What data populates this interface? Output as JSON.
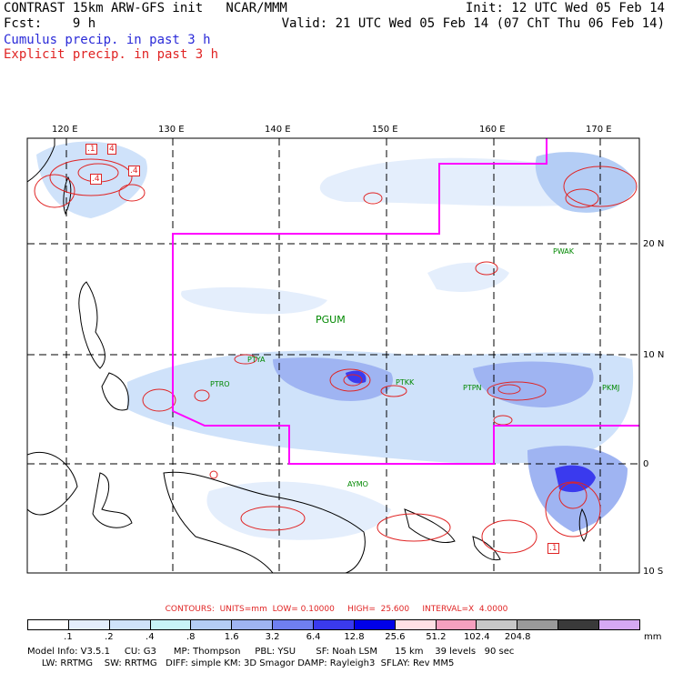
{
  "header": {
    "title": "CONTRAST 15km ARW-GFS init   NCAR/MMM",
    "init": "Init: 12 UTC Wed 05 Feb 14",
    "fcst": "Fcst:    9 h",
    "valid": "Valid: 21 UTC Wed 05 Feb 14 (07 ChT Thu 06 Feb 14)",
    "cumulus_label": "Cumulus precip. in past 3 h",
    "explicit_label": "Explicit precip. in past 3 h"
  },
  "map": {
    "lon_labels": [
      "120 E",
      "130 E",
      "140 E",
      "150 E",
      "160 E",
      "170 E"
    ],
    "lat_labels": [
      "20 N",
      "10 N",
      "0",
      "10 S"
    ],
    "stations": [
      "PWAK",
      "PGUM",
      "PTYA",
      "PTRO",
      "PTKK",
      "PTPN",
      "PKMJ",
      "AYMO"
    ],
    "contour_markers": [
      ".1",
      "4",
      ".4",
      ".4",
      ".1"
    ],
    "colors": {
      "domain_box": "#ff00ff",
      "explicit": "#e02424",
      "cumulus": "#2a2ad8",
      "station_text": "#008800"
    }
  },
  "contour_info": "CONTOURS:  UNITS=mm  LOW= 0.10000     HIGH=  25.600     INTERVAL=X  4.0000",
  "legend": {
    "colors": [
      "#ffffff",
      "#e4eefc",
      "#cfe2fa",
      "#c8f4f7",
      "#b4cdf5",
      "#9fb4f2",
      "#6f7ff0",
      "#3a3aee",
      "#0000e8",
      "#ffe0e4",
      "#f6a0bf",
      "#c8c8c8",
      "#9a9a9a",
      "#3a3a3a",
      "#d6a8f4"
    ],
    "ticks": [
      ".1",
      ".2",
      ".4",
      ".8",
      "1.6",
      "3.2",
      "6.4",
      "12.8",
      "25.6",
      "51.2",
      "102.4",
      "204.8"
    ],
    "unit": "mm"
  },
  "model_info": {
    "line1": "Model Info: V3.5.1     CU: G3      MP: Thompson     PBL: YSU       SF: Noah LSM      15 km    39 levels   90 sec",
    "line2": "     LW: RRTMG    SW: RRTMG   DIFF: simple KM: 3D Smagor DAMP: Rayleigh3  SFLAY: Rev MM5"
  }
}
